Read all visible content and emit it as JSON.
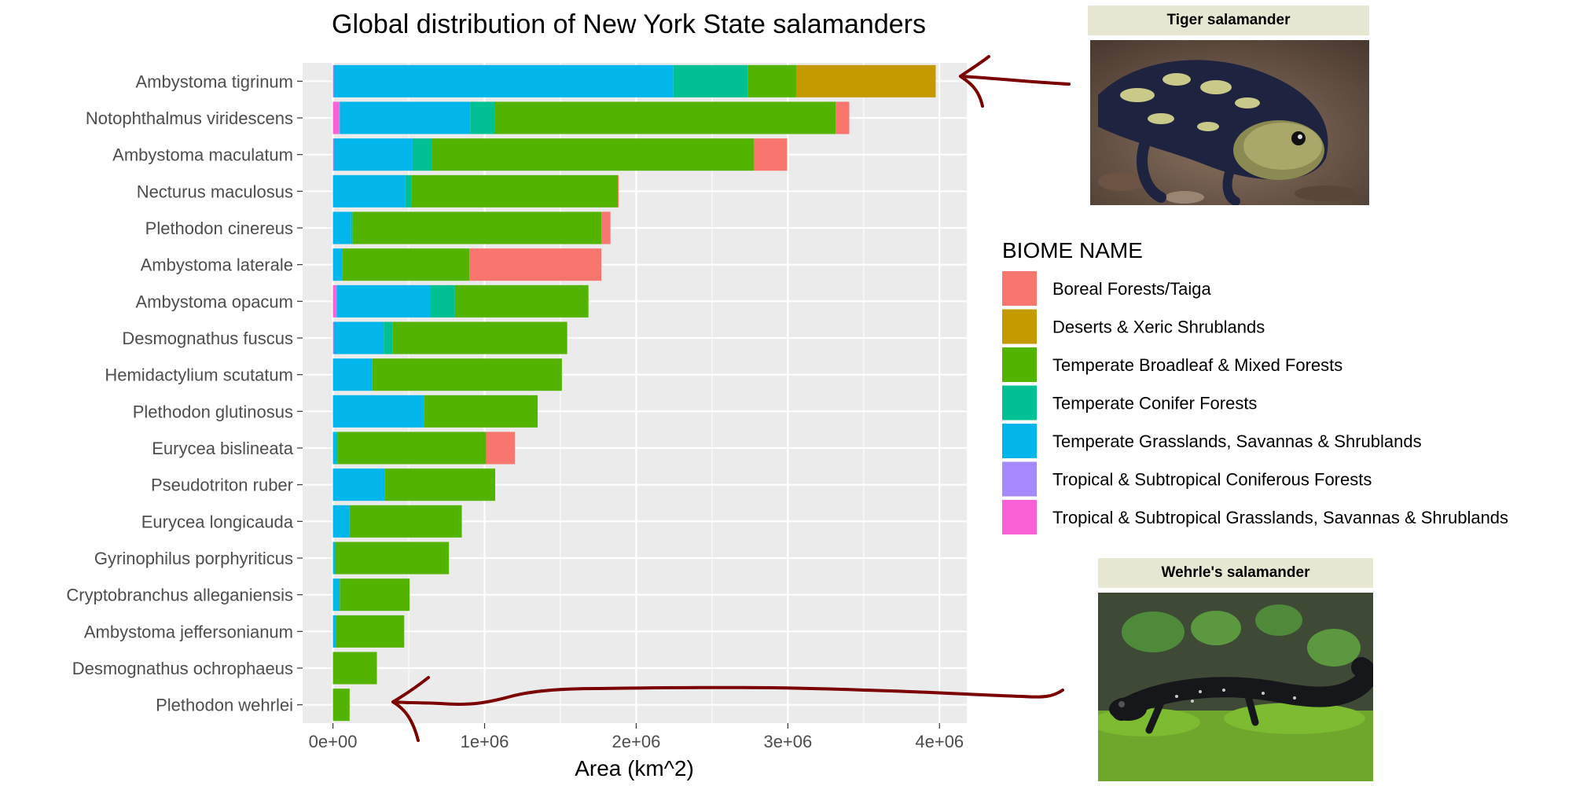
{
  "chart_data": {
    "type": "bar",
    "orientation": "horizontal",
    "stacked": true,
    "title": "Global distribution of New York State salamanders",
    "xlabel": "Area (km^2)",
    "ylabel": "",
    "xlim": [
      -200000,
      4180000
    ],
    "x_ticks": [
      0,
      1000000,
      2000000,
      3000000,
      4000000
    ],
    "x_tick_labels": [
      "0e+00",
      "1e+06",
      "2e+06",
      "3e+06",
      "4e+06"
    ],
    "grid": true,
    "legend_title": "BIOME  NAME",
    "legend_position": "right",
    "categories": [
      "Ambystoma tigrinum",
      "Notophthalmus viridescens",
      "Ambystoma maculatum",
      "Necturus maculosus",
      "Plethodon cinereus",
      "Ambystoma laterale",
      "Ambystoma opacum",
      "Desmognathus fuscus",
      "Hemidactylium scutatum",
      "Plethodon glutinosus",
      "Eurycea bislineata",
      "Pseudotriton ruber",
      "Eurycea longicauda",
      "Gyrinophilus porphyriticus",
      "Cryptobranchus alleganiensis",
      "Ambystoma jeffersonianum",
      "Desmognathus ochrophaeus",
      "Plethodon wehrlei"
    ],
    "stack_order": [
      "Tropical & Subtropical Grasslands, Savannas & Shrublands",
      "Tropical & Subtropical Coniferous Forests",
      "Temperate Grasslands, Savannas & Shrublands",
      "Temperate Conifer Forests",
      "Temperate Broadleaf & Mixed Forests",
      "Deserts & Xeric Shrublands",
      "Boreal Forests/Taiga"
    ],
    "series": [
      {
        "name": "Boreal Forests/Taiga",
        "color": "#F8766D",
        "values": [
          0,
          90000,
          220000,
          5000,
          60000,
          870000,
          0,
          0,
          0,
          0,
          190000,
          0,
          0,
          0,
          0,
          0,
          0,
          0
        ]
      },
      {
        "name": "Deserts & Xeric Shrublands",
        "color": "#C49A00",
        "values": [
          920000,
          0,
          0,
          0,
          0,
          0,
          0,
          0,
          0,
          0,
          0,
          0,
          0,
          0,
          0,
          0,
          0,
          0
        ]
      },
      {
        "name": "Temperate Broadleaf & Mixed Forests",
        "color": "#53B400",
        "values": [
          320000,
          2250000,
          2120000,
          1360000,
          1640000,
          840000,
          880000,
          1150000,
          1250000,
          750000,
          980000,
          730000,
          740000,
          750000,
          460000,
          450000,
          290000,
          110000
        ]
      },
      {
        "name": "Temperate Conifer Forests",
        "color": "#00C094",
        "values": [
          490000,
          160000,
          130000,
          40000,
          10000,
          0,
          160000,
          60000,
          0,
          0,
          10000,
          0,
          0,
          0,
          0,
          0,
          0,
          0
        ]
      },
      {
        "name": "Temperate Grasslands, Savannas & Shrublands",
        "color": "#00B6EB",
        "values": [
          2240000,
          860000,
          520000,
          480000,
          120000,
          60000,
          620000,
          330000,
          260000,
          600000,
          20000,
          340000,
          110000,
          15000,
          45000,
          20000,
          0,
          0
        ]
      },
      {
        "name": "Tropical & Subtropical Coniferous Forests",
        "color": "#A58AFF",
        "values": [
          0,
          5000,
          0,
          0,
          0,
          0,
          5000,
          0,
          0,
          0,
          0,
          0,
          0,
          0,
          0,
          0,
          0,
          0
        ]
      },
      {
        "name": "Tropical & Subtropical Grasslands, Savannas & Shrublands",
        "color": "#FB61D7",
        "values": [
          5000,
          40000,
          5000,
          0,
          0,
          0,
          20000,
          5000,
          0,
          0,
          0,
          0,
          0,
          0,
          0,
          0,
          0,
          0
        ]
      }
    ],
    "annotations": [
      {
        "type": "hand-drawn-arrow",
        "points_to": "Ambystoma tigrinum",
        "color": "#7B0000"
      },
      {
        "type": "hand-drawn-arrow",
        "points_to": "Plethodon wehrlei",
        "color": "#7B0000"
      }
    ]
  },
  "panels": {
    "tiger": {
      "caption": "Tiger salamander"
    },
    "wehrle": {
      "caption": "Wehrle's salamander"
    }
  }
}
